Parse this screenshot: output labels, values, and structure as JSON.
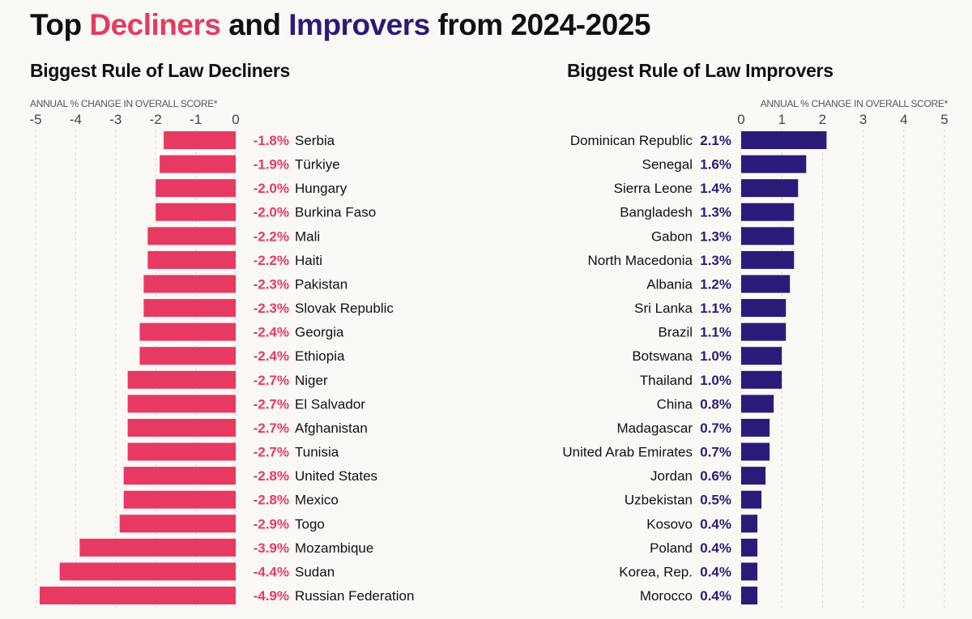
{
  "title": {
    "prefix": "Top ",
    "decliners": "Decliners",
    "middle": " and ",
    "improvers": "Improvers",
    "suffix": " from 2024-2025"
  },
  "colors": {
    "decliner": "#e63a62",
    "improver": "#2b1b78",
    "background": "#fbf9f5"
  },
  "chart_data": [
    {
      "type": "bar",
      "title": "Biggest Rule of Law Decliners",
      "xlabel": "ANNUAL % CHANGE IN OVERALL SCORE*",
      "xlim": [
        -5,
        0
      ],
      "ticks": [
        -5,
        -4,
        -3,
        -2,
        -1,
        0
      ],
      "grid": true,
      "categories": [
        "Serbia",
        "Türkiye",
        "Hungary",
        "Burkina Faso",
        "Mali",
        "Haiti",
        "Pakistan",
        "Slovak Republic",
        "Georgia",
        "Ethiopia",
        "Niger",
        "El Salvador",
        "Afghanistan",
        "Tunisia",
        "United States",
        "Mexico",
        "Togo",
        "Mozambique",
        "Sudan",
        "Russian Federation"
      ],
      "values": [
        -1.8,
        -1.9,
        -2.0,
        -2.0,
        -2.2,
        -2.2,
        -2.3,
        -2.3,
        -2.4,
        -2.4,
        -2.7,
        -2.7,
        -2.7,
        -2.7,
        -2.8,
        -2.8,
        -2.9,
        -3.9,
        -4.4,
        -4.9
      ],
      "labels": [
        "-1.8%",
        "-1.9%",
        "-2.0%",
        "-2.0%",
        "-2.2%",
        "-2.2%",
        "-2.3%",
        "-2.3%",
        "-2.4%",
        "-2.4%",
        "-2.7%",
        "-2.7%",
        "-2.7%",
        "-2.7%",
        "-2.8%",
        "-2.8%",
        "-2.9%",
        "-3.9%",
        "-4.4%",
        "-4.9%"
      ]
    },
    {
      "type": "bar",
      "title": "Biggest Rule of Law Improvers",
      "xlabel": "ANNUAL % CHANGE IN OVERALL SCORE*",
      "xlim": [
        0,
        5
      ],
      "ticks": [
        0,
        1,
        2,
        3,
        4,
        5
      ],
      "grid": true,
      "categories": [
        "Dominican Republic",
        "Senegal",
        "Sierra Leone",
        "Bangladesh",
        "Gabon",
        "North Macedonia",
        "Albania",
        "Sri Lanka",
        "Brazil",
        "Botswana",
        "Thailand",
        "China",
        "Madagascar",
        "United Arab Emirates",
        "Jordan",
        "Uzbekistan",
        "Kosovo",
        "Poland",
        "Korea, Rep.",
        "Morocco"
      ],
      "values": [
        2.1,
        1.6,
        1.4,
        1.3,
        1.3,
        1.3,
        1.2,
        1.1,
        1.1,
        1.0,
        1.0,
        0.8,
        0.7,
        0.7,
        0.6,
        0.5,
        0.4,
        0.4,
        0.4,
        0.4
      ],
      "labels": [
        "2.1%",
        "1.6%",
        "1.4%",
        "1.3%",
        "1.3%",
        "1.3%",
        "1.2%",
        "1.1%",
        "1.1%",
        "1.0%",
        "1.0%",
        "0.8%",
        "0.7%",
        "0.7%",
        "0.6%",
        "0.5%",
        "0.4%",
        "0.4%",
        "0.4%",
        "0.4%"
      ]
    }
  ]
}
